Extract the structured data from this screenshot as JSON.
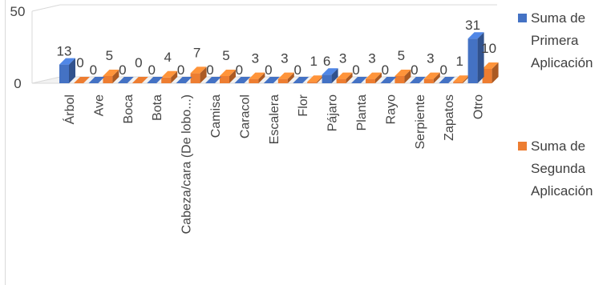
{
  "chart_data": {
    "type": "bar",
    "style": "3d-clustered-column",
    "categories": [
      "Árbol",
      "Ave",
      "Boca",
      "Bota",
      "Cabeza/cara (De lobo...)",
      "Camisa",
      "Caracol",
      "Escalera",
      "Flor",
      "Pájaro",
      "Planta",
      "Rayo",
      "Serpiente",
      "Zapatos",
      "Otro"
    ],
    "series": [
      {
        "name": "Suma de Primera Aplicación",
        "color": "#4472c4",
        "values": [
          13,
          0,
          0,
          0,
          0,
          0,
          0,
          0,
          0,
          6,
          0,
          0,
          0,
          0,
          31
        ]
      },
      {
        "name": "Suma de Segunda Aplicación",
        "color": "#ed7d31",
        "values": [
          0,
          5,
          0,
          4,
          7,
          5,
          3,
          3,
          1,
          3,
          3,
          5,
          3,
          1,
          10
        ]
      }
    ],
    "yticks": [
      0,
      50
    ],
    "ylim": [
      0,
      50
    ],
    "legend_position": "right",
    "grid": false,
    "data_labels": true
  },
  "legend": {
    "items": [
      {
        "lines": [
          "Suma de",
          "Primera",
          "Aplicación"
        ],
        "color": "#4472c4"
      },
      {
        "lines": [
          "Suma de",
          "Segunda",
          "Aplicación"
        ],
        "color": "#ed7d31"
      }
    ]
  }
}
